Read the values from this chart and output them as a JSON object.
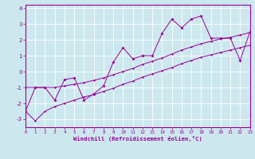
{
  "xlabel": "Windchill (Refroidissement éolien,°C)",
  "x_data": [
    0,
    1,
    2,
    3,
    4,
    5,
    6,
    7,
    8,
    9,
    10,
    11,
    12,
    13,
    14,
    15,
    16,
    17,
    18,
    19,
    20,
    21,
    22,
    23
  ],
  "y_main": [
    -2.5,
    -1.0,
    -1.0,
    -1.8,
    -0.5,
    -0.4,
    -1.8,
    -1.4,
    -0.9,
    0.6,
    1.5,
    0.8,
    1.0,
    1.0,
    2.4,
    3.3,
    2.75,
    3.3,
    3.5,
    2.1,
    2.1,
    2.1,
    0.7,
    2.5
  ],
  "y_upper": [
    -1.0,
    -1.0,
    -1.0,
    -1.0,
    -0.9,
    -0.8,
    -0.7,
    -0.55,
    -0.4,
    -0.2,
    0.0,
    0.2,
    0.45,
    0.65,
    0.85,
    1.1,
    1.35,
    1.55,
    1.75,
    1.9,
    2.05,
    2.15,
    2.3,
    2.45
  ],
  "y_lower": [
    -2.5,
    -3.1,
    -2.5,
    -2.2,
    -2.0,
    -1.8,
    -1.6,
    -1.45,
    -1.25,
    -1.05,
    -0.8,
    -0.6,
    -0.35,
    -0.15,
    0.05,
    0.25,
    0.5,
    0.7,
    0.9,
    1.05,
    1.2,
    1.35,
    1.5,
    1.65
  ],
  "line_color": "#990099",
  "bg_color": "#cce8ee",
  "grid_color": "#ffffff",
  "xlim": [
    0,
    23
  ],
  "ylim": [
    -3.5,
    4.2
  ],
  "yticks": [
    -3,
    -2,
    -1,
    0,
    1,
    2,
    3,
    4
  ],
  "xticks": [
    0,
    1,
    2,
    3,
    4,
    5,
    6,
    7,
    8,
    9,
    10,
    11,
    12,
    13,
    14,
    15,
    16,
    17,
    18,
    19,
    20,
    21,
    22,
    23
  ]
}
